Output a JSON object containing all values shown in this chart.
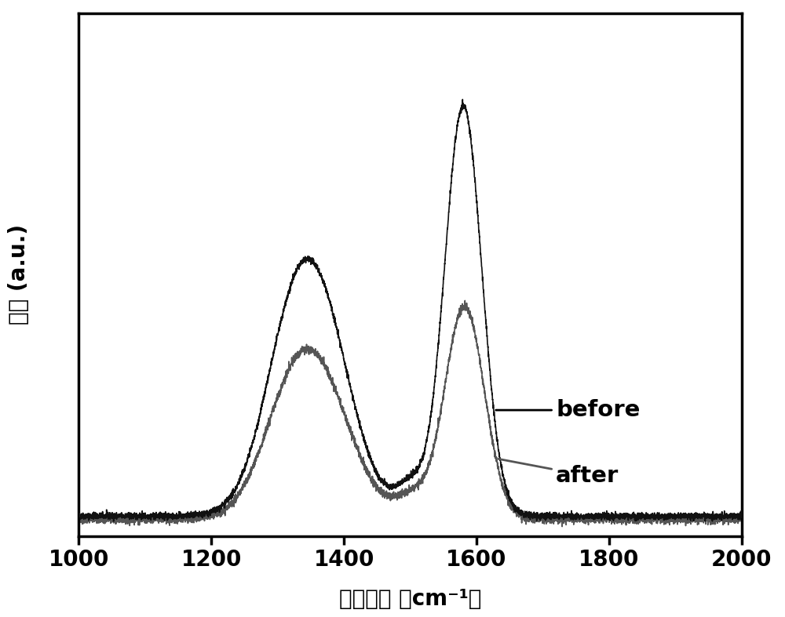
{
  "xmin": 1000,
  "xmax": 2000,
  "xticks": [
    1000,
    1200,
    1400,
    1600,
    1800,
    2000
  ],
  "xlabel_chinese": "拉曼位移",
  "xlabel_units": " （cm⁻¹）",
  "ylabel_chinese": "强度",
  "ylabel_units": " (a.u.)",
  "line_before_color": "#111111",
  "line_after_color": "#555555",
  "line_width": 1.2,
  "background_color": "#ffffff",
  "axes_background": "#ffffff",
  "label_before": "before",
  "label_after": "after",
  "axis_fontsize": 20,
  "tick_fontsize": 20,
  "noise_level_before": 0.004,
  "noise_level_after": 0.005
}
